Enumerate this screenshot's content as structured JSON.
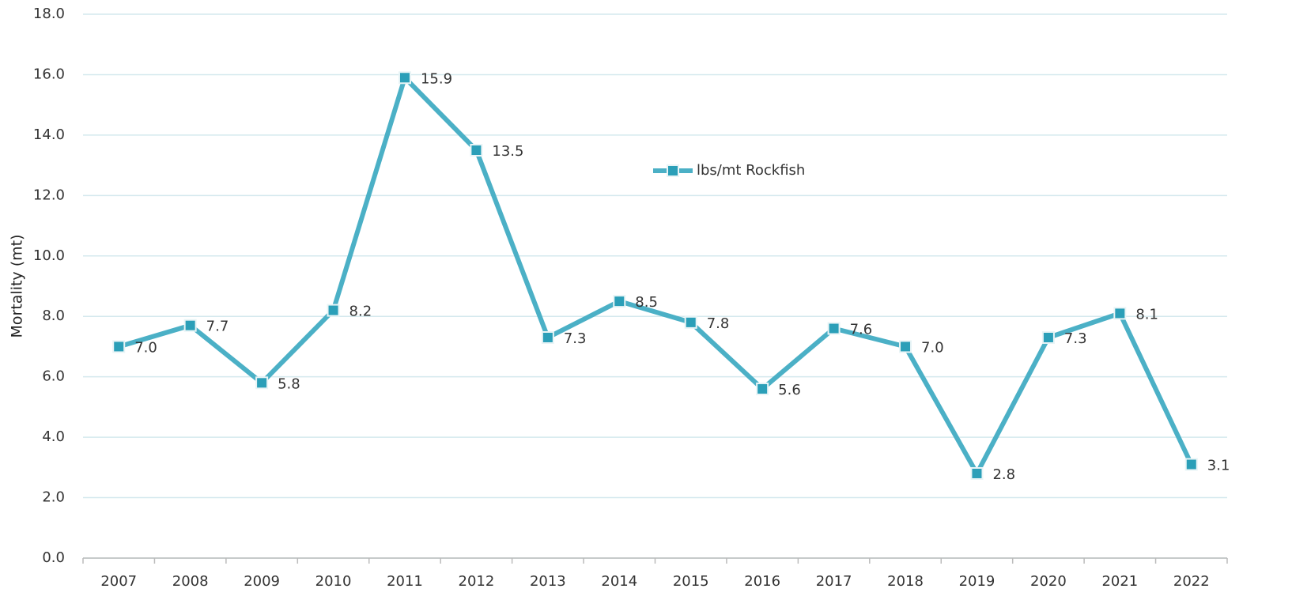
{
  "chart_data": {
    "type": "line",
    "y_label": "Mortality (mt)",
    "categories": [
      "2007",
      "2008",
      "2009",
      "2010",
      "2011",
      "2012",
      "2013",
      "2014",
      "2015",
      "2016",
      "2017",
      "2018",
      "2019",
      "2020",
      "2021",
      "2022"
    ],
    "series": [
      {
        "name": "lbs/mt Rockfish",
        "color": "#4bb0c6",
        "marker_color": "#2b9fb8",
        "values": [
          7.0,
          7.7,
          5.8,
          8.2,
          15.9,
          13.5,
          7.3,
          8.5,
          7.8,
          5.6,
          7.6,
          7.0,
          2.8,
          7.3,
          8.1,
          3.1
        ],
        "value_labels": [
          "7.0",
          "7.7",
          "5.8",
          "8.2",
          "15.9",
          "13.5",
          "7.3",
          "8.5",
          "7.8",
          "5.6",
          "7.6",
          "7.0",
          "2.8",
          "7.3",
          "8.1",
          "3.1"
        ]
      }
    ],
    "ylim": [
      0,
      18
    ],
    "yticks": [
      {
        "value": 0,
        "label": "0.0"
      },
      {
        "value": 2,
        "label": "2.0"
      },
      {
        "value": 4,
        "label": "4.0"
      },
      {
        "value": 6,
        "label": "6.0"
      },
      {
        "value": 8,
        "label": "8.0"
      },
      {
        "value": 10,
        "label": "10.0"
      },
      {
        "value": 12,
        "label": "12.0"
      },
      {
        "value": 14,
        "label": "14.0"
      },
      {
        "value": 16,
        "label": "16.0"
      },
      {
        "value": 18,
        "label": "18.0"
      }
    ],
    "grid": true
  }
}
